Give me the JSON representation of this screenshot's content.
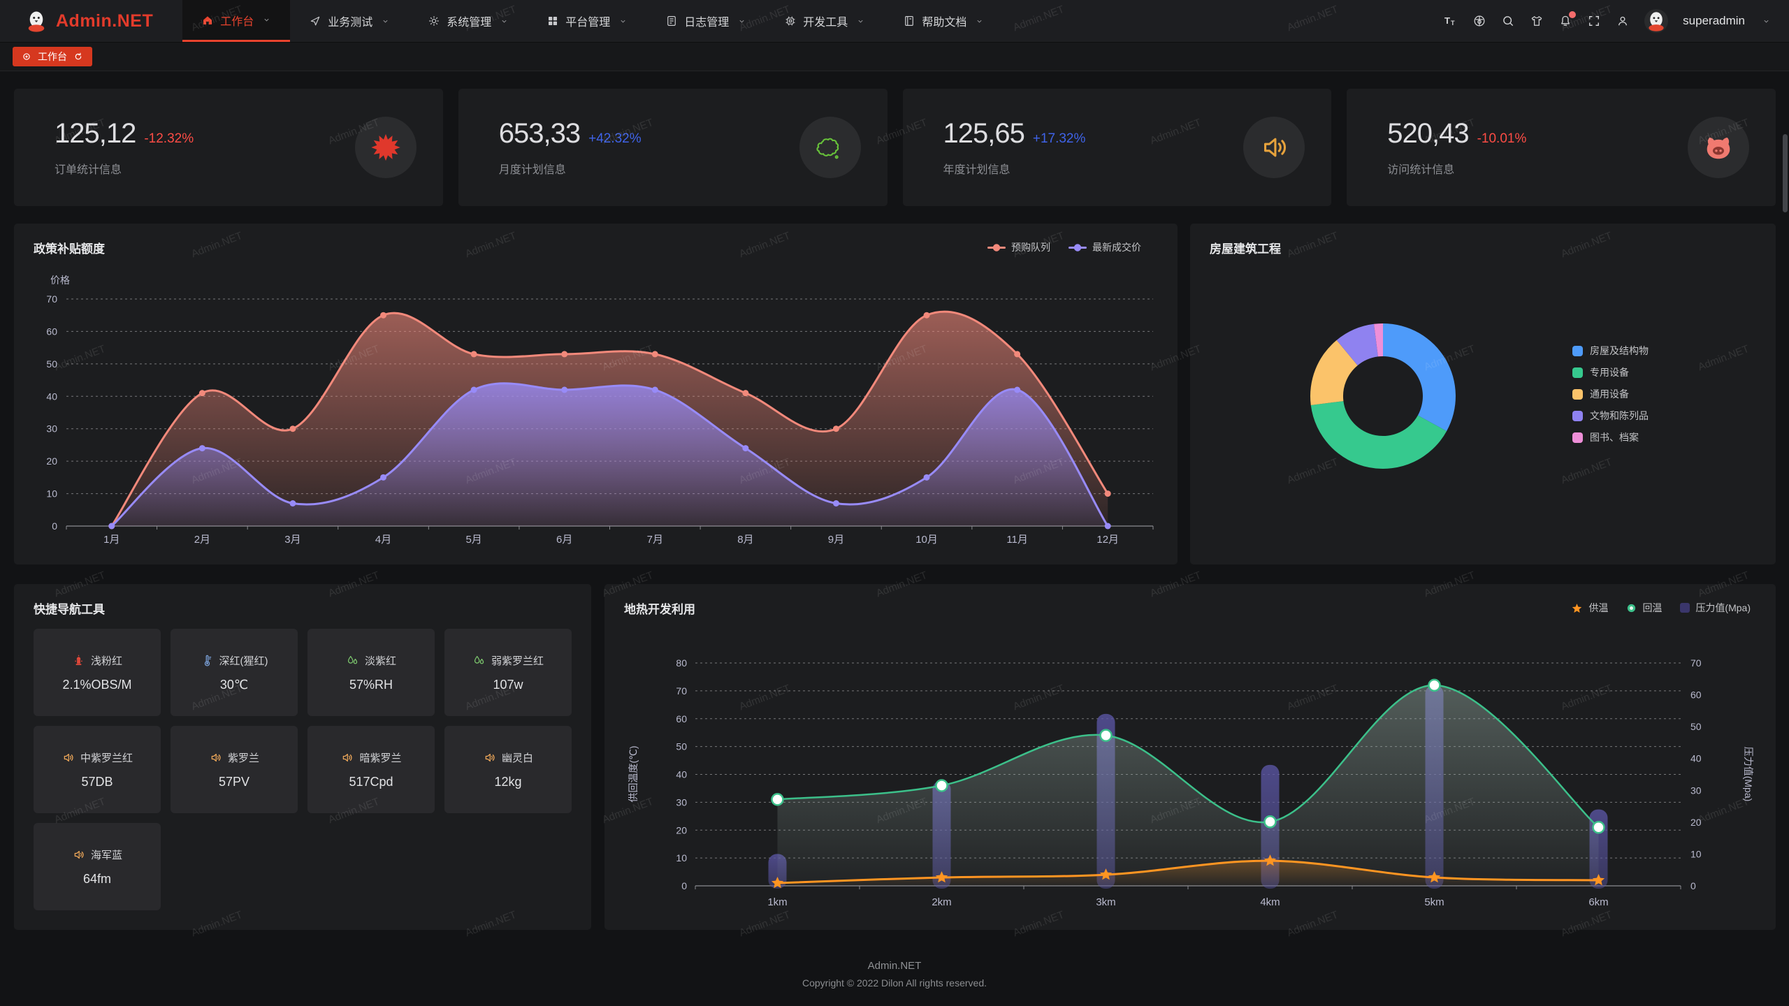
{
  "watermark": {
    "text": "Admin.NET"
  },
  "navbar": {
    "logo_text": "Admin.NET",
    "menu": [
      {
        "label": "工作台",
        "icon": "home-icon",
        "active": true
      },
      {
        "label": "业务测试",
        "icon": "navigation-icon",
        "active": false
      },
      {
        "label": "系统管理",
        "icon": "gear-icon",
        "active": false
      },
      {
        "label": "平台管理",
        "icon": "grid-icon",
        "active": false
      },
      {
        "label": "日志管理",
        "icon": "log-icon",
        "active": false
      },
      {
        "label": "开发工具",
        "icon": "chip-icon",
        "active": false
      },
      {
        "label": "帮助文档",
        "icon": "book-icon",
        "active": false
      }
    ],
    "user": "superadmin"
  },
  "tabbar": {
    "active_tab": "工作台"
  },
  "stat_cards": [
    {
      "value": "125,12",
      "delta": "-12.32%",
      "trend": "down",
      "label": "订单统计信息",
      "icon": "splat-icon",
      "icon_color": "#e0382c"
    },
    {
      "value": "653,33",
      "delta": "+42.32%",
      "trend": "up",
      "label": "月度计划信息",
      "icon": "china-map-icon",
      "icon_color": "#67c23a"
    },
    {
      "value": "125,65",
      "delta": "+17.32%",
      "trend": "up",
      "label": "年度计划信息",
      "icon": "speaker-icon",
      "icon_color": "#e6a23c"
    },
    {
      "value": "520,43",
      "delta": "-10.01%",
      "trend": "down",
      "label": "访问统计信息",
      "icon": "pig-icon",
      "icon_color": "#f07a70"
    }
  ],
  "quick_nav": {
    "title": "快捷导航工具",
    "tiles": [
      {
        "icon": "fire-hydrant-icon",
        "icon_color": "#e0483a",
        "name": "浅粉红",
        "value": "2.1%OBS/M"
      },
      {
        "icon": "thermometer-icon",
        "icon_color": "#7ea6e0",
        "name": "深红(猩红)",
        "value": "30℃"
      },
      {
        "icon": "water-drops-icon",
        "icon_color": "#7dc86e",
        "name": "淡紫红",
        "value": "57%RH"
      },
      {
        "icon": "water-drops-icon",
        "icon_color": "#7dc86e",
        "name": "弱紫罗兰红",
        "value": "107w"
      },
      {
        "icon": "speaker-icon",
        "icon_color": "#f0a95a",
        "name": "中紫罗兰红",
        "value": "57DB"
      },
      {
        "icon": "speaker-icon",
        "icon_color": "#f0a95a",
        "name": "紫罗兰",
        "value": "57PV"
      },
      {
        "icon": "speaker-icon",
        "icon_color": "#f0a95a",
        "name": "暗紫罗兰",
        "value": "517Cpd"
      },
      {
        "icon": "speaker-icon",
        "icon_color": "#f0a95a",
        "name": "幽灵白",
        "value": "12kg"
      },
      {
        "icon": "speaker-icon",
        "icon_color": "#f0a95a",
        "name": "海军蓝",
        "value": "64fm"
      }
    ]
  },
  "chart_data": [
    {
      "id": "policy_subsidy",
      "type": "area",
      "title": "政策补贴额度",
      "ylabel": "价格",
      "categories": [
        "1月",
        "2月",
        "3月",
        "4月",
        "5月",
        "6月",
        "7月",
        "8月",
        "9月",
        "10月",
        "11月",
        "12月"
      ],
      "ylim": [
        0,
        70
      ],
      "ytick_interval": 10,
      "grid": "dashed-horizontal",
      "legend_position": "top-right",
      "series": [
        {
          "name": "预购队列",
          "color": "#F2897B",
          "values": [
            0,
            41,
            30,
            65,
            53,
            53,
            53,
            41,
            30,
            65,
            53,
            10
          ]
        },
        {
          "name": "最新成交价",
          "color": "#988BF8",
          "values": [
            0,
            24,
            7,
            15,
            42,
            42,
            42,
            24,
            7,
            15,
            42,
            0
          ]
        }
      ]
    },
    {
      "id": "housing_construction",
      "type": "pie",
      "style": "donut",
      "title": "房屋建筑工程",
      "legend_position": "right",
      "slices": [
        {
          "label": "房屋及结构物",
          "value": 33,
          "color": "#4E9BFA"
        },
        {
          "label": "专用设备",
          "value": 40,
          "color": "#36C98E"
        },
        {
          "label": "通用设备",
          "value": 16,
          "color": "#FBC36A"
        },
        {
          "label": "文物和陈列品",
          "value": 9,
          "color": "#8F82F0"
        },
        {
          "label": "图书、档案",
          "value": 2,
          "color": "#EE8FD8"
        }
      ]
    },
    {
      "id": "geothermal",
      "type": "line",
      "title": "地热开发利用",
      "categories": [
        "1km",
        "2km",
        "3km",
        "4km",
        "5km",
        "6km"
      ],
      "ylabel_left": "供回温度(℃)",
      "ylim_left": [
        0,
        80
      ],
      "ylabel_right": "压力值(Mpa)",
      "ylim_right": [
        0,
        70
      ],
      "grid": "dashed-horizontal",
      "legend_position": "top-right",
      "series": [
        {
          "name": "供温",
          "type": "line",
          "marker": "star",
          "axis": "left",
          "color": "#FF9522",
          "values": [
            1,
            3,
            4,
            9,
            3,
            2
          ]
        },
        {
          "name": "回温",
          "type": "line",
          "marker": "circle",
          "axis": "left",
          "color": "#3CC08A",
          "values": [
            31,
            36,
            54,
            23,
            72,
            21
          ]
        },
        {
          "name": "压力值(Mpa)",
          "type": "bar",
          "marker": "square",
          "axis": "right",
          "color": "#3A366B",
          "values": [
            10,
            33,
            54,
            38,
            63,
            24
          ]
        }
      ]
    }
  ],
  "footer": {
    "line1": "Admin.NET",
    "line2": "Copyright © 2022 Dilon All rights reserved."
  }
}
